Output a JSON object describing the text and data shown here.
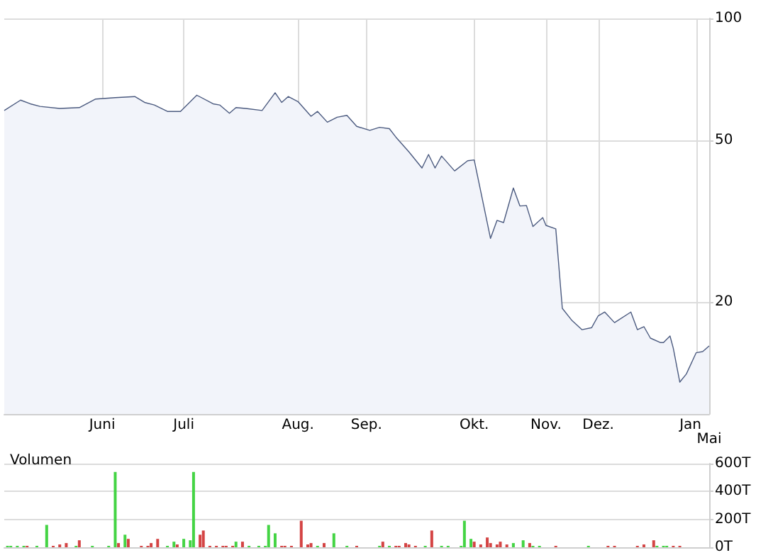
{
  "chart_data": [
    {
      "type": "area",
      "color": "#4b5a7f",
      "log": "y",
      "grid": true,
      "categories": [
        null,
        null,
        null,
        null,
        null,
        null,
        null,
        null,
        null,
        null,
        null,
        null,
        null,
        null,
        null,
        null,
        null,
        null,
        null,
        null,
        null,
        null,
        null,
        null,
        null,
        null,
        null,
        null,
        null,
        null,
        "Juni",
        null,
        null,
        null,
        null,
        null,
        null,
        null,
        null,
        null,
        null,
        null,
        null,
        null,
        null,
        null,
        null,
        null,
        null,
        null,
        null,
        null,
        null,
        null,
        null,
        "Juli",
        null,
        null,
        null,
        null,
        null,
        null,
        null,
        null,
        null,
        null,
        null,
        null,
        null,
        null,
        null,
        null,
        null,
        null,
        null,
        null,
        null,
        null,
        null,
        null,
        null,
        null,
        null,
        null,
        null,
        null,
        null,
        null,
        null,
        null,
        "Aug.",
        null,
        null,
        null,
        null,
        null,
        null,
        null,
        null,
        null,
        null,
        null,
        null,
        null,
        null,
        null,
        null,
        null,
        null,
        null,
        null,
        "Sep.",
        null,
        null,
        null,
        null,
        null,
        null,
        null,
        null,
        null,
        null,
        null,
        null,
        null,
        null,
        null,
        null,
        null,
        null,
        null,
        null,
        null,
        null,
        null,
        null,
        null,
        null,
        null,
        null,
        null,
        null,
        null,
        null,
        "Okt.",
        null,
        null,
        null,
        null,
        null,
        null,
        null,
        null,
        null,
        null,
        null,
        null,
        null,
        null,
        null,
        null,
        null,
        null,
        null,
        null,
        null,
        "Nov.",
        null,
        null,
        null,
        null,
        null,
        null,
        null,
        null,
        null,
        null,
        null,
        null,
        null,
        null,
        null,
        "Dez.",
        null,
        null,
        null,
        null,
        null,
        null,
        null,
        null,
        null,
        null,
        null,
        null,
        null,
        null,
        null,
        null,
        null,
        null,
        null,
        null,
        null,
        null,
        null,
        null,
        null,
        null,
        null,
        null,
        null,
        "Jan",
        null,
        null,
        null,
        "Mai"
      ],
      "values": [
        59.3,
        null,
        null,
        null,
        null,
        62.9,
        null,
        null,
        61.6,
        null,
        null,
        60.7,
        null,
        null,
        null,
        null,
        null,
        60.0,
        null,
        null,
        null,
        null,
        null,
        60.3,
        null,
        null,
        null,
        null,
        63.3,
        null,
        null,
        null,
        null,
        null,
        63.8,
        null,
        null,
        null,
        null,
        null,
        64.2,
        null,
        null,
        62.1,
        null,
        null,
        61.2,
        null,
        null,
        null,
        59.0,
        null,
        null,
        null,
        59.0,
        null,
        null,
        null,
        null,
        64.7,
        null,
        null,
        null,
        null,
        61.6,
        null,
        61.2,
        null,
        null,
        58.4,
        null,
        60.3,
        null,
        null,
        60.0,
        null,
        null,
        null,
        null,
        59.3,
        null,
        null,
        null,
        65.6,
        null,
        62.1,
        null,
        64.2,
        null,
        null,
        62.4,
        null,
        null,
        null,
        57.4,
        null,
        59.0,
        null,
        null,
        55.5,
        null,
        null,
        57.1,
        null,
        null,
        57.7,
        null,
        null,
        54.2,
        null,
        null,
        null,
        53.0,
        null,
        null,
        53.9,
        null,
        null,
        53.5,
        null,
        51.0,
        null,
        null,
        null,
        46.9,
        null,
        null,
        null,
        42.8,
        null,
        46.2,
        null,
        42.8,
        null,
        45.8,
        null,
        null,
        null,
        42.1,
        null,
        null,
        null,
        44.6,
        null,
        44.8,
        null,
        37.5,
        null,
        null,
        28.7,
        null,
        31.8,
        null,
        31.4,
        null,
        null,
        38.2,
        null,
        34.5,
        null,
        34.6,
        null,
        30.7,
        null,
        null,
        32.3,
        30.9,
        null,
        null,
        30.3,
        null,
        19.3,
        null,
        null,
        18.0,
        null,
        null,
        17.1,
        null,
        null,
        17.3,
        null,
        18.5,
        null,
        18.9,
        null,
        null,
        17.8,
        null,
        null,
        null,
        null,
        18.9,
        null,
        17.1,
        null,
        17.4,
        null,
        16.3,
        null,
        null,
        15.9,
        15.9,
        null,
        16.5,
        15.4,
        null,
        12.7,
        null,
        13.3,
        null,
        null,
        15.0,
        null,
        15.1,
        null,
        15.6
      ],
      "ylim": [
        10.6,
        100
      ],
      "yticks": [
        20,
        50,
        100
      ]
    },
    {
      "type": "bar",
      "title": "Volumen",
      "grid": "y",
      "tick_labels": "y",
      "categories": [
        null,
        null,
        null,
        null,
        null,
        null,
        null,
        null,
        null,
        null,
        null,
        null,
        null,
        null,
        null,
        null,
        null,
        null,
        null,
        null,
        null,
        null,
        null,
        null,
        null,
        null,
        null,
        null,
        null,
        null,
        null,
        null,
        null,
        null,
        null,
        null,
        null,
        null,
        null,
        null,
        null,
        null,
        null,
        null,
        null,
        null,
        null,
        null,
        null,
        null,
        null,
        null,
        null,
        null,
        null,
        null,
        null,
        null,
        null,
        null,
        null,
        null,
        null,
        null,
        null,
        null,
        null,
        null,
        null,
        null,
        null,
        null,
        null,
        null,
        null,
        null,
        null,
        null,
        null,
        null,
        null,
        null,
        null,
        null,
        null,
        null,
        null,
        null,
        null,
        null,
        null,
        null,
        null,
        null,
        null,
        null,
        null,
        null,
        null,
        null,
        null,
        null,
        null,
        null,
        null,
        null,
        null,
        null,
        null,
        null,
        null,
        null,
        null,
        null,
        null,
        null,
        null,
        null,
        null,
        null,
        null,
        null,
        null,
        null,
        null,
        null,
        null,
        null,
        null,
        null,
        null,
        null,
        null,
        null,
        null,
        null,
        null,
        null,
        null,
        null,
        null,
        null,
        null,
        null,
        null,
        null,
        null,
        null,
        null,
        null,
        null,
        null,
        null,
        null,
        null,
        null,
        null,
        null,
        null,
        null,
        null,
        null,
        null,
        null,
        null,
        null,
        null,
        null,
        null,
        null,
        null,
        null,
        null,
        null,
        null,
        null,
        null,
        null,
        null,
        null,
        null,
        null,
        null,
        null,
        null,
        null,
        null,
        null,
        null,
        null,
        null,
        null,
        null,
        null,
        null,
        null,
        null,
        null,
        null,
        null,
        null,
        null,
        null,
        null,
        null,
        null,
        null,
        null,
        null,
        null,
        null,
        null,
        null,
        null,
        null,
        null,
        null
      ],
      "values": [
        null,
        10,
        10,
        null,
        10,
        null,
        10,
        10,
        null,
        null,
        10,
        null,
        null,
        160,
        null,
        10,
        null,
        20,
        null,
        30,
        null,
        null,
        10,
        50,
        null,
        null,
        null,
        10,
        null,
        null,
        null,
        null,
        10,
        null,
        540,
        30,
        null,
        90,
        60,
        null,
        null,
        null,
        10,
        null,
        10,
        30,
        null,
        60,
        null,
        null,
        10,
        null,
        40,
        20,
        null,
        60,
        null,
        50,
        540,
        null,
        90,
        120,
        null,
        10,
        null,
        10,
        null,
        10,
        10,
        null,
        10,
        40,
        null,
        40,
        null,
        10,
        null,
        null,
        10,
        null,
        10,
        160,
        null,
        100,
        null,
        10,
        10,
        null,
        10,
        null,
        null,
        190,
        null,
        20,
        30,
        null,
        10,
        null,
        30,
        null,
        null,
        100,
        null,
        null,
        null,
        10,
        null,
        null,
        10,
        null,
        null,
        null,
        null,
        null,
        null,
        10,
        40,
        null,
        10,
        null,
        10,
        10,
        null,
        30,
        20,
        null,
        10,
        null,
        null,
        10,
        null,
        120,
        null,
        null,
        10,
        null,
        10,
        null,
        null,
        null,
        10,
        190,
        null,
        60,
        40,
        null,
        20,
        null,
        70,
        30,
        null,
        20,
        40,
        null,
        20,
        null,
        30,
        null,
        null,
        50,
        null,
        30,
        10,
        null,
        10,
        null,
        null,
        null,
        null,
        10,
        null,
        null,
        null,
        null,
        null,
        null,
        null,
        null,
        null,
        10,
        null,
        null,
        null,
        null,
        null,
        10,
        null,
        10,
        null,
        null,
        null,
        null,
        null,
        null,
        10,
        null,
        20,
        null,
        null,
        50,
        10,
        null,
        10,
        10,
        null,
        10,
        null,
        10,
        null,
        null,
        null,
        null,
        null,
        null,
        null,
        null,
        null
      ],
      "colors": [
        null,
        "#44d444",
        "#44d444",
        null,
        "#44d444",
        null,
        "#44d444",
        "#d44444",
        null,
        null,
        "#44d444",
        null,
        null,
        "#44d444",
        null,
        "#d44444",
        null,
        "#d44444",
        null,
        "#d44444",
        null,
        null,
        "#44d444",
        "#d44444",
        null,
        null,
        null,
        "#44d444",
        null,
        null,
        null,
        null,
        "#44d444",
        null,
        "#44d444",
        "#d44444",
        null,
        "#44d444",
        "#d44444",
        null,
        null,
        null,
        "#d44444",
        null,
        "#d44444",
        "#d44444",
        null,
        "#d44444",
        null,
        null,
        "#44d444",
        null,
        "#44d444",
        "#d44444",
        null,
        "#44d444",
        null,
        "#44d444",
        "#44d444",
        null,
        "#d44444",
        "#d44444",
        null,
        "#d44444",
        null,
        "#d44444",
        null,
        "#d44444",
        "#d44444",
        null,
        "#d44444",
        "#44d444",
        null,
        "#d44444",
        null,
        "#44d444",
        null,
        null,
        "#44d444",
        null,
        "#44d444",
        "#44d444",
        null,
        "#44d444",
        null,
        "#d44444",
        "#d44444",
        null,
        "#d44444",
        null,
        null,
        "#d44444",
        null,
        "#d44444",
        "#d44444",
        null,
        "#44d444",
        null,
        "#d44444",
        null,
        null,
        "#44d444",
        null,
        null,
        null,
        "#44d444",
        null,
        null,
        "#d44444",
        null,
        null,
        null,
        null,
        null,
        null,
        "#44d444",
        "#d44444",
        null,
        "#44d444",
        null,
        "#d44444",
        "#d44444",
        null,
        "#d44444",
        "#d44444",
        null,
        "#d44444",
        null,
        null,
        "#44d444",
        null,
        "#d44444",
        null,
        null,
        "#44d444",
        null,
        "#44d444",
        null,
        null,
        null,
        "#44d444",
        "#44d444",
        null,
        "#44d444",
        "#d44444",
        null,
        "#d44444",
        null,
        "#d44444",
        "#d44444",
        null,
        "#d44444",
        "#d44444",
        null,
        "#d44444",
        null,
        "#44d444",
        null,
        null,
        "#44d444",
        null,
        "#d44444",
        "#44d444",
        null,
        "#44d444",
        null,
        null,
        null,
        null,
        "#d44444",
        null,
        null,
        null,
        null,
        null,
        null,
        null,
        null,
        null,
        "#44d444",
        null,
        null,
        null,
        null,
        null,
        "#d44444",
        null,
        "#d44444",
        null,
        null,
        null,
        null,
        null,
        null,
        "#d44444",
        null,
        "#d44444",
        null,
        null,
        "#d44444",
        "#44d444",
        null,
        "#44d444",
        "#44d444",
        null,
        "#d44444",
        null,
        "#d44444",
        null,
        null,
        null,
        null,
        null,
        null,
        null,
        null,
        null
      ],
      "ylim": [
        0,
        600
      ],
      "yticks": [
        {
          "value": 0,
          "label": "0T"
        },
        {
          "value": 200,
          "label": "200T"
        },
        {
          "value": 400,
          "label": "400T"
        },
        {
          "value": 600,
          "label": "600T"
        }
      ]
    }
  ]
}
